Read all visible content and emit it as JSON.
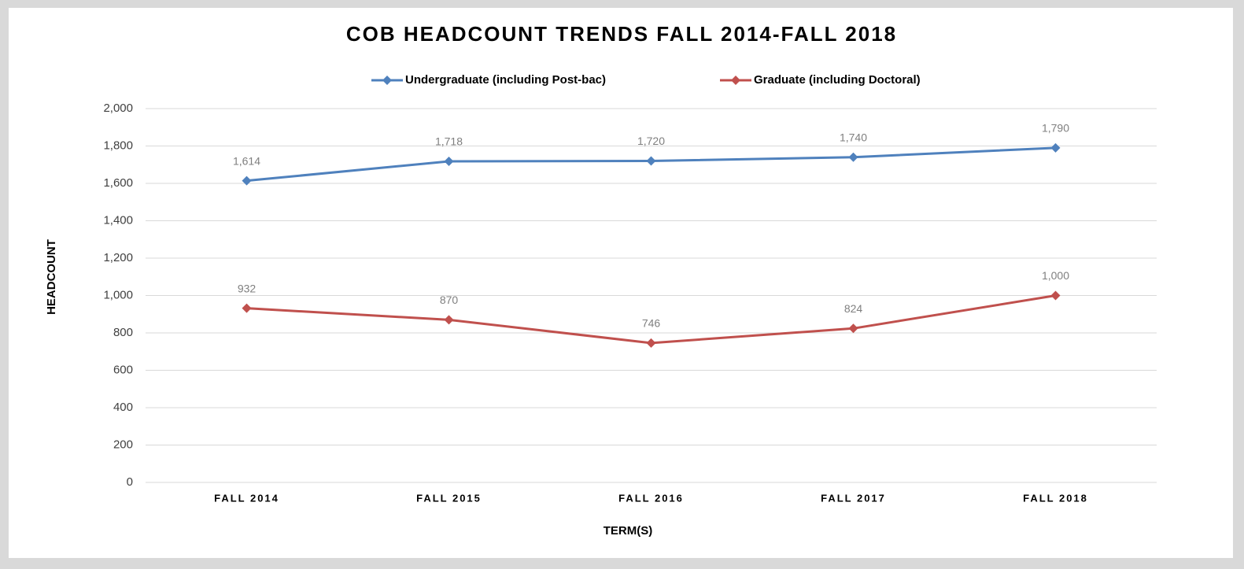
{
  "chart_data": {
    "type": "line",
    "title": "COB HEADCOUNT TRENDS FALL 2014-FALL 2018",
    "x_label": "TERM(S)",
    "y_label": "HEADCOUNT",
    "categories": [
      "FALL 2014",
      "FALL 2015",
      "FALL 2016",
      "FALL 2017",
      "FALL 2018"
    ],
    "series": [
      {
        "name": "Undergraduate (including Post-bac)",
        "color": "#4f81bd",
        "values": [
          1614,
          1718,
          1720,
          1740,
          1790
        ],
        "value_labels": [
          "1,614",
          "1,718",
          "1,720",
          "1,740",
          "1,790"
        ]
      },
      {
        "name": "Graduate (including Doctoral)",
        "color": "#c0504d",
        "values": [
          932,
          870,
          746,
          824,
          1000
        ],
        "value_labels": [
          "932",
          "870",
          "746",
          "824",
          "1,000"
        ]
      }
    ],
    "ylim": [
      0,
      2000
    ],
    "yticks": [
      0,
      200,
      400,
      600,
      800,
      {
        "value": 1000,
        "label": "1,000"
      },
      {
        "value": 1200,
        "label": "1,200"
      },
      {
        "value": 1400,
        "label": "1,400"
      },
      {
        "value": 1600,
        "label": "1,600"
      },
      {
        "value": 1800,
        "label": "1,800"
      },
      {
        "value": 2000,
        "label": "2,000"
      }
    ],
    "grid": true,
    "legend": "top"
  }
}
